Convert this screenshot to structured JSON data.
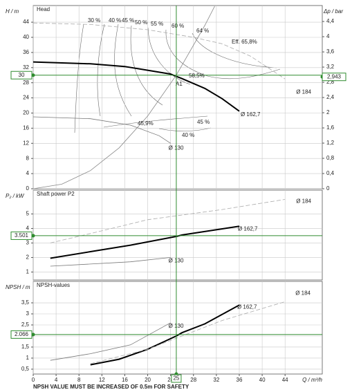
{
  "x_axis": {
    "label": "Q / m³/h",
    "xlim": [
      0,
      50.5
    ],
    "xticks": [
      0,
      4,
      8,
      12,
      16,
      20,
      24,
      28,
      32,
      36,
      40,
      44
    ]
  },
  "operating_point": {
    "x": 25,
    "color": "#2e8b2e"
  },
  "footnote": "NPSH VALUE MUST BE INCREASED OF 0.5m FOR SAFETY",
  "chart_data": [
    {
      "type": "line",
      "title": "Head",
      "ylabel": "H / m",
      "y2label": "Δp / bar",
      "ylim": [
        0,
        48.4
      ],
      "yticks": [
        0,
        4,
        8,
        12,
        16,
        20,
        24,
        28,
        32,
        36,
        40,
        44
      ],
      "y2lim": [
        0,
        4.82
      ],
      "y2ticks": [
        0,
        {
          "value": 0.4,
          "label": "0,4"
        },
        {
          "value": 0.8,
          "label": "0,8"
        },
        {
          "value": 1.2,
          "label": "1,2"
        },
        {
          "value": 1.6,
          "label": "1,6"
        },
        2,
        {
          "value": 2.4,
          "label": "2,4"
        },
        {
          "value": 2.8,
          "label": "2,8"
        },
        {
          "value": 3.2,
          "label": "3,2"
        },
        {
          "value": 3.6,
          "label": "3,6"
        },
        4,
        {
          "value": 4.4,
          "label": "4,4"
        }
      ],
      "operating_value": 30,
      "operating_value_y2": {
        "value": 2.943,
        "label": "2,943"
      },
      "series": [
        {
          "name": "Ø 162,7",
          "color": "#000000",
          "linestyle": "solid",
          "weight": "bold",
          "x": [
            0,
            10,
            16,
            20,
            24,
            26,
            30,
            33,
            36
          ],
          "values": [
            33.5,
            33,
            32.3,
            31.3,
            30.3,
            29.1,
            26.5,
            23.8,
            20.5
          ]
        },
        {
          "name": "Ø 184",
          "color": "#aaaaaa",
          "linestyle": "dashed",
          "weight": "normal",
          "x": [
            0,
            10,
            20,
            28,
            33,
            38,
            44
          ],
          "values": [
            43.8,
            43.4,
            42,
            40,
            38.3,
            35,
            29
          ]
        },
        {
          "name": "Ø 130",
          "color": "#777777",
          "linestyle": "solid",
          "weight": "normal",
          "x": [
            0,
            10,
            17,
            22,
            24
          ],
          "values": [
            19,
            18.5,
            16.8,
            14,
            12
          ]
        },
        {
          "color": "#888888",
          "linestyle": "solid",
          "weight": "normal",
          "x": [
            0,
            5,
            10,
            15,
            20,
            25,
            30,
            31.7
          ],
          "values": [
            0,
            1.2,
            4.8,
            10.8,
            19.2,
            30,
            43.2,
            48.2
          ]
        }
      ],
      "annotations": [
        "30 %",
        "40 %",
        "45 %",
        "50 %",
        "55 %",
        "60 %",
        "64 %",
        "Eff. 65,8%",
        "58,5%",
        "45,9%",
        "45 %",
        "40 %",
        "A1"
      ]
    },
    {
      "type": "line",
      "title": "Shaft power P2",
      "ylabel": "P₂ / kW",
      "ylim": [
        0.45,
        6.64
      ],
      "yticks": [
        1,
        2,
        3,
        4,
        5
      ],
      "operating_value": 3.501,
      "series": [
        {
          "name": "Ø 162,7",
          "color": "#000000",
          "linestyle": "solid",
          "weight": "bold",
          "x": [
            3,
            10,
            17,
            25,
            26,
            36
          ],
          "values": [
            1.95,
            2.4,
            2.85,
            3.45,
            3.55,
            4.15
          ]
        },
        {
          "name": "Ø 184",
          "color": "#aaaaaa",
          "linestyle": "dashed",
          "weight": "normal",
          "x": [
            3,
            10,
            20,
            33,
            44
          ],
          "values": [
            3.0,
            3.65,
            4.6,
            5.3,
            6.0
          ]
        },
        {
          "name": "Ø 130",
          "color": "#777777",
          "linestyle": "solid",
          "weight": "normal",
          "x": [
            3,
            10,
            17,
            24
          ],
          "values": [
            1.4,
            1.55,
            1.7,
            2.0
          ]
        }
      ]
    },
    {
      "type": "line",
      "title": "NPSH-values",
      "ylabel": "NPSH / m",
      "ylim": [
        0.28,
        4.47
      ],
      "yticks": [
        {
          "value": 0.5,
          "label": "0,5"
        },
        1,
        {
          "value": 1.5,
          "label": "1,5"
        },
        2,
        {
          "value": 2.5,
          "label": "2,5"
        },
        3,
        {
          "value": 3.5,
          "label": "3,5"
        }
      ],
      "operating_value": 2.066,
      "series": [
        {
          "name": "Ø 162,7",
          "color": "#000000",
          "linestyle": "solid",
          "weight": "bold",
          "x": [
            10,
            15,
            20,
            25,
            26,
            30,
            36
          ],
          "values": [
            0.7,
            0.95,
            1.4,
            2.0,
            2.15,
            2.55,
            3.4
          ]
        },
        {
          "name": "Ø 184",
          "color": "#aaaaaa",
          "linestyle": "dashed",
          "weight": "normal",
          "x": [
            10,
            20,
            33,
            44
          ],
          "values": [
            0.75,
            1.4,
            2.7,
            3.55
          ]
        },
        {
          "name": "Ø 130",
          "color": "#777777",
          "linestyle": "solid",
          "weight": "normal",
          "x": [
            3,
            10,
            17,
            24
          ],
          "values": [
            0.9,
            1.2,
            1.6,
            2.6
          ]
        }
      ]
    }
  ]
}
